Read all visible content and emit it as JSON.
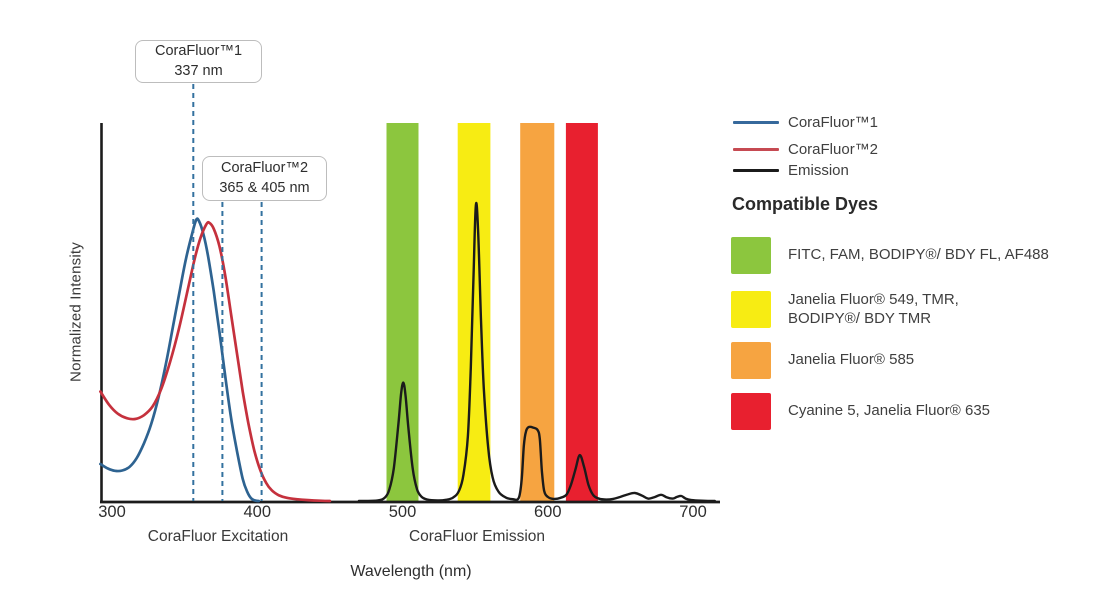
{
  "figure": {
    "y_axis_label": "Normalized Intensity",
    "x_axis_label": "Wavelength (nm)",
    "excitation_caption": "CoraFluor Excitation",
    "emission_caption": "CoraFluor Emission"
  },
  "callouts": [
    {
      "title": "CoraFluor™1",
      "value": "337 nm"
    },
    {
      "title": "CoraFluor™2",
      "value": "365 & 405 nm"
    }
  ],
  "legend": {
    "items": [
      {
        "label": "CoraFluor™1",
        "color": "#36699c"
      },
      {
        "label": "CoraFluor™2",
        "color": "#c64a52"
      },
      {
        "label": "Emission",
        "color": "#1b1b1b"
      }
    ],
    "dyes_heading": "Compatible Dyes",
    "dyes": [
      {
        "color": "#8cc63e",
        "lines": [
          "FITC, FAM, BODIPY®/ BDY FL, AF488"
        ]
      },
      {
        "color": "#f7ec13",
        "lines": [
          "Janelia Fluor® 549, TMR,",
          "BODIPY®/ BDY TMR"
        ]
      },
      {
        "color": "#f6a441",
        "lines": [
          "Janelia Fluor® 585"
        ]
      },
      {
        "color": "#e8202f",
        "lines": [
          "Cyanine 5, Janelia Fluor® 635"
        ]
      }
    ]
  },
  "chart_data": {
    "type": "line",
    "title": "",
    "xlabel": "Wavelength (nm)",
    "ylabel": "Normalized Intensity",
    "xlim": [
      292,
      719
    ],
    "ylim": [
      0,
      1.05
    ],
    "x_ticks": [
      300,
      400,
      500,
      600,
      700
    ],
    "grid": false,
    "legend_position": "right",
    "excitation_marker_labels_nm": [
      337,
      365,
      405
    ],
    "excitation_marker_lines_nm": [
      356,
      376,
      403
    ],
    "marker_line_color": "#33719f",
    "bands": [
      {
        "dyes": "FITC, FAM, BODIPY/BDY FL, AF488",
        "color": "#8cc63e",
        "from_nm": 489,
        "to_nm": 511
      },
      {
        "dyes": "Janelia Fluor 549, TMR, BODIPY/BDY TMR",
        "color": "#f7ec13",
        "from_nm": 538,
        "to_nm": 560.5
      },
      {
        "dyes": "Janelia Fluor 585",
        "color": "#f6a441",
        "from_nm": 581,
        "to_nm": 604.5
      },
      {
        "dyes": "Cyanine 5, Janelia Fluor 635",
        "color": "#e8202f",
        "from_nm": 612.5,
        "to_nm": 634.5
      }
    ],
    "series": [
      {
        "name": "CoraFluor™1",
        "role": "excitation",
        "color": "#2e6391",
        "points": [
          [
            292,
            0.125
          ],
          [
            297,
            0.11
          ],
          [
            302,
            0.102
          ],
          [
            307,
            0.103
          ],
          [
            312,
            0.115
          ],
          [
            317,
            0.145
          ],
          [
            322,
            0.195
          ],
          [
            327,
            0.26
          ],
          [
            332,
            0.35
          ],
          [
            337,
            0.46
          ],
          [
            342,
            0.59
          ],
          [
            347,
            0.72
          ],
          [
            351,
            0.82
          ],
          [
            355,
            0.9
          ],
          [
            358,
            0.95
          ],
          [
            360,
            0.945
          ],
          [
            363,
            0.9
          ],
          [
            366,
            0.83
          ],
          [
            370,
            0.71
          ],
          [
            374,
            0.57
          ],
          [
            378,
            0.42
          ],
          [
            382,
            0.28
          ],
          [
            386,
            0.17
          ],
          [
            390,
            0.075
          ],
          [
            393,
            0.032
          ],
          [
            396,
            0.008
          ],
          [
            399,
            0.001
          ],
          [
            401,
            0
          ]
        ]
      },
      {
        "name": "CoraFluor™2",
        "role": "excitation",
        "color": "#c5313d",
        "points": [
          [
            292,
            0.37
          ],
          [
            298,
            0.325
          ],
          [
            304,
            0.295
          ],
          [
            310,
            0.28
          ],
          [
            316,
            0.277
          ],
          [
            322,
            0.29
          ],
          [
            328,
            0.32
          ],
          [
            334,
            0.38
          ],
          [
            340,
            0.47
          ],
          [
            346,
            0.58
          ],
          [
            352,
            0.71
          ],
          [
            357,
            0.82
          ],
          [
            361,
            0.89
          ],
          [
            365,
            0.935
          ],
          [
            367,
            0.94
          ],
          [
            370,
            0.92
          ],
          [
            374,
            0.86
          ],
          [
            378,
            0.76
          ],
          [
            382,
            0.63
          ],
          [
            386,
            0.5
          ],
          [
            390,
            0.37
          ],
          [
            394,
            0.26
          ],
          [
            398,
            0.17
          ],
          [
            402,
            0.105
          ],
          [
            406,
            0.062
          ],
          [
            410,
            0.036
          ],
          [
            415,
            0.019
          ],
          [
            420,
            0.011
          ],
          [
            427,
            0.006
          ],
          [
            435,
            0.003
          ],
          [
            443,
            0.001
          ],
          [
            450,
            0
          ]
        ]
      },
      {
        "name": "Emission",
        "role": "emission",
        "color": "#1b1b1b",
        "points": [
          [
            470,
            0
          ],
          [
            483,
            0.002
          ],
          [
            488,
            0.012
          ],
          [
            491,
            0.04
          ],
          [
            494,
            0.11
          ],
          [
            497,
            0.25
          ],
          [
            499,
            0.36
          ],
          [
            500.5,
            0.4
          ],
          [
            502,
            0.36
          ],
          [
            504,
            0.25
          ],
          [
            507,
            0.11
          ],
          [
            510,
            0.04
          ],
          [
            513,
            0.015
          ],
          [
            517,
            0.005
          ],
          [
            524,
            0.002
          ],
          [
            530,
            0.004
          ],
          [
            535,
            0.012
          ],
          [
            539,
            0.035
          ],
          [
            542,
            0.09
          ],
          [
            545,
            0.22
          ],
          [
            547,
            0.45
          ],
          [
            549,
            0.78
          ],
          [
            550.5,
            1.0
          ],
          [
            552,
            0.92
          ],
          [
            554,
            0.62
          ],
          [
            556,
            0.38
          ],
          [
            559,
            0.18
          ],
          [
            562,
            0.08
          ],
          [
            566,
            0.032
          ],
          [
            571,
            0.012
          ],
          [
            576,
            0.006
          ],
          [
            580,
            0.01
          ],
          [
            582,
            0.07
          ],
          [
            583.5,
            0.185
          ],
          [
            585,
            0.235
          ],
          [
            587,
            0.25
          ],
          [
            590,
            0.248
          ],
          [
            593,
            0.24
          ],
          [
            594.5,
            0.21
          ],
          [
            596,
            0.1
          ],
          [
            597.5,
            0.035
          ],
          [
            600,
            0.014
          ],
          [
            604,
            0.007
          ],
          [
            609,
            0.011
          ],
          [
            613,
            0.022
          ],
          [
            616,
            0.055
          ],
          [
            619,
            0.105
          ],
          [
            622,
            0.155
          ],
          [
            625,
            0.115
          ],
          [
            628,
            0.055
          ],
          [
            631,
            0.022
          ],
          [
            634,
            0.01
          ],
          [
            639,
            0.005
          ],
          [
            645,
            0.007
          ],
          [
            650,
            0.014
          ],
          [
            655,
            0.022
          ],
          [
            660,
            0.027
          ],
          [
            665,
            0.018
          ],
          [
            669,
            0.008
          ],
          [
            673,
            0.012
          ],
          [
            678,
            0.021
          ],
          [
            682,
            0.012
          ],
          [
            686,
            0.008
          ],
          [
            689,
            0.014
          ],
          [
            692,
            0.017
          ],
          [
            695,
            0.008
          ],
          [
            699,
            0.003
          ],
          [
            706,
            0.001
          ],
          [
            715,
            0
          ]
        ]
      }
    ]
  }
}
